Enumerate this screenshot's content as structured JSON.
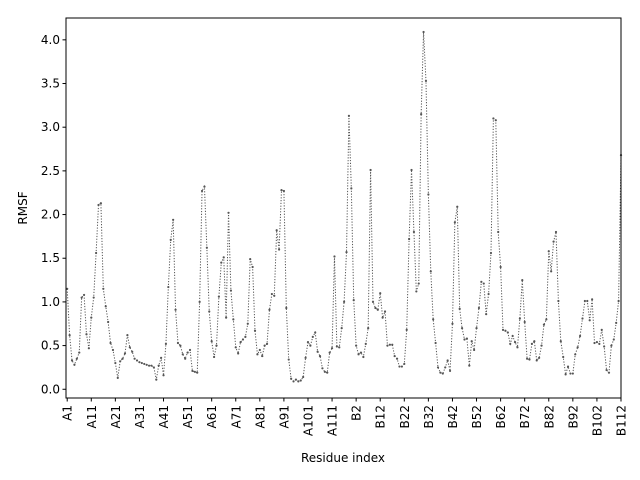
{
  "chart_data": {
    "type": "line",
    "xlabel": "Residue index",
    "ylabel": "RMSF",
    "ylim": [
      -0.1,
      4.25
    ],
    "yticks": [
      0.0,
      0.5,
      1.0,
      1.5,
      2.0,
      2.5,
      3.0,
      3.5,
      4.0
    ],
    "ytick_labels": [
      "0.0",
      "0.5",
      "1.0",
      "1.5",
      "2.0",
      "2.5",
      "3.0",
      "3.5",
      "4.0"
    ],
    "xticks": [
      {
        "index": 0,
        "label": "A1"
      },
      {
        "index": 10,
        "label": "A11"
      },
      {
        "index": 20,
        "label": "A21"
      },
      {
        "index": 30,
        "label": "A31"
      },
      {
        "index": 40,
        "label": "A41"
      },
      {
        "index": 50,
        "label": "A51"
      },
      {
        "index": 60,
        "label": "A61"
      },
      {
        "index": 70,
        "label": "A71"
      },
      {
        "index": 80,
        "label": "A81"
      },
      {
        "index": 90,
        "label": "A91"
      },
      {
        "index": 100,
        "label": "A101"
      },
      {
        "index": 110,
        "label": "A111"
      },
      {
        "index": 120,
        "label": "B2"
      },
      {
        "index": 130,
        "label": "B12"
      },
      {
        "index": 140,
        "label": "B22"
      },
      {
        "index": 150,
        "label": "B32"
      },
      {
        "index": 160,
        "label": "B42"
      },
      {
        "index": 170,
        "label": "B52"
      },
      {
        "index": 180,
        "label": "B62"
      },
      {
        "index": 190,
        "label": "B72"
      },
      {
        "index": 200,
        "label": "B82"
      },
      {
        "index": 210,
        "label": "B92"
      },
      {
        "index": 220,
        "label": "B102"
      },
      {
        "index": 230,
        "label": "B112"
      }
    ],
    "line_color": "#555555",
    "line_style": "dotted",
    "marker": "dot",
    "grid": false,
    "series": [
      {
        "values": [
          1.15,
          0.62,
          0.33,
          0.28,
          0.35,
          0.42,
          1.05,
          1.08,
          0.63,
          0.47,
          0.82,
          1.05,
          1.56,
          2.11,
          2.13,
          1.15,
          0.95,
          0.77,
          0.53,
          0.45,
          0.3,
          0.13,
          0.32,
          0.35,
          0.41,
          0.62,
          0.48,
          0.43,
          0.35,
          0.33,
          0.31,
          0.3,
          0.29,
          0.28,
          0.27,
          0.27,
          0.25,
          0.11,
          0.27,
          0.36,
          0.16,
          0.52,
          1.17,
          1.71,
          1.94,
          0.91,
          0.53,
          0.5,
          0.4,
          0.35,
          0.42,
          0.45,
          0.21,
          0.2,
          0.19,
          1.0,
          2.27,
          2.32,
          1.62,
          0.89,
          0.55,
          0.37,
          0.5,
          1.06,
          1.45,
          1.51,
          0.82,
          2.02,
          1.13,
          0.8,
          0.48,
          0.41,
          0.54,
          0.57,
          0.6,
          0.75,
          1.49,
          1.4,
          0.67,
          0.4,
          0.45,
          0.38,
          0.5,
          0.52,
          0.91,
          1.09,
          1.07,
          1.82,
          1.6,
          2.28,
          2.27,
          0.93,
          0.34,
          0.12,
          0.09,
          0.11,
          0.09,
          0.1,
          0.14,
          0.36,
          0.54,
          0.5,
          0.6,
          0.65,
          0.43,
          0.38,
          0.24,
          0.2,
          0.19,
          0.42,
          0.47,
          1.52,
          0.49,
          0.48,
          0.7,
          1.0,
          1.57,
          3.13,
          2.3,
          1.02,
          0.5,
          0.4,
          0.42,
          0.37,
          0.52,
          0.7,
          2.51,
          1.0,
          0.93,
          0.91,
          1.1,
          0.82,
          0.89,
          0.5,
          0.51,
          0.51,
          0.38,
          0.35,
          0.26,
          0.26,
          0.29,
          0.68,
          1.72,
          2.51,
          1.8,
          1.12,
          1.21,
          3.15,
          4.09,
          3.53,
          2.23,
          1.35,
          0.8,
          0.53,
          0.25,
          0.19,
          0.18,
          0.25,
          0.33,
          0.21,
          0.75,
          1.91,
          2.09,
          0.92,
          0.7,
          0.57,
          0.58,
          0.27,
          0.55,
          0.45,
          0.7,
          0.93,
          1.23,
          1.21,
          0.86,
          1.09,
          1.56,
          3.1,
          3.08,
          1.8,
          1.4,
          0.68,
          0.67,
          0.65,
          0.52,
          0.61,
          0.54,
          0.48,
          0.81,
          1.25,
          0.77,
          0.35,
          0.34,
          0.52,
          0.55,
          0.33,
          0.36,
          0.5,
          0.74,
          0.8,
          1.58,
          1.35,
          1.69,
          1.8,
          1.01,
          0.55,
          0.37,
          0.17,
          0.26,
          0.18,
          0.18,
          0.4,
          0.48,
          0.61,
          0.81,
          1.01,
          1.01,
          0.79,
          1.03,
          0.53,
          0.54,
          0.52,
          0.68,
          0.49,
          0.22,
          0.19,
          0.5,
          0.57,
          0.76,
          1.01,
          2.68
        ]
      }
    ]
  }
}
